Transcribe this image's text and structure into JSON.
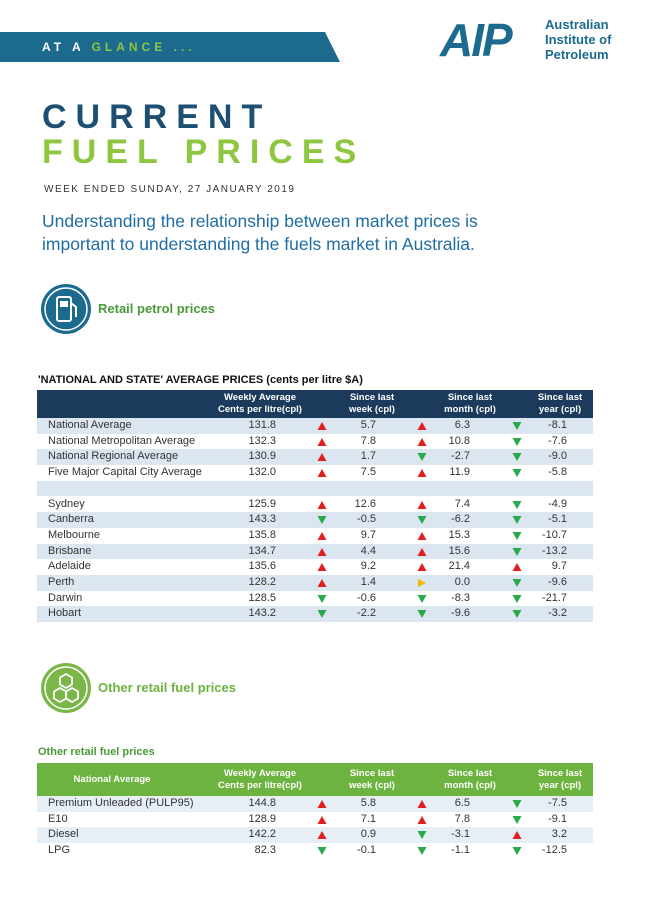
{
  "banner": {
    "prefix": "AT A",
    "highlight": "GLANCE ..."
  },
  "logo": {
    "mark": "AIP",
    "name_lines": [
      "Australian",
      "Institute of",
      "Petroleum"
    ]
  },
  "title": {
    "line1": "CURRENT",
    "line2": "FUEL PRICES"
  },
  "date": "WEEK ENDED SUNDAY, 27 JANUARY 2019",
  "intro": "Understanding the relationship between market prices is important to understanding the fuels market in Australia.",
  "sections": [
    {
      "label": "Retail petrol prices"
    },
    {
      "label": "Other retail fuel prices"
    }
  ],
  "tables": [
    {
      "title": "'NATIONAL AND STATE' AVERAGE PRICES (cents per litre $A)",
      "headers": [
        [
          "Weekly Average",
          "Cents per litre(cpl)"
        ],
        [
          "Since last",
          "week (cpl)"
        ],
        [
          "Since last",
          "month (cpl)"
        ],
        [
          "Since last",
          "year (cpl)"
        ]
      ],
      "groups": [
        [
          [
            "National Average",
            "131.8",
            "5.7",
            "6.3",
            "-8.1"
          ],
          [
            "National Metropolitan Average",
            "132.3",
            "7.8",
            "10.8",
            "-7.6"
          ],
          [
            "National Regional Average",
            "130.9",
            "1.7",
            "-2.7",
            "-9.0"
          ],
          [
            "Five Major Capital City Average",
            "132.0",
            "7.5",
            "11.9",
            "-5.8"
          ]
        ],
        [
          [
            "Sydney",
            "125.9",
            "12.6",
            "7.4",
            "-4.9"
          ],
          [
            "Canberra",
            "143.3",
            "-0.5",
            "-6.2",
            "-5.1"
          ],
          [
            "Melbourne",
            "135.8",
            "9.7",
            "15.3",
            "-10.7"
          ],
          [
            "Brisbane",
            "134.7",
            "4.4",
            "15.6",
            "-13.2"
          ],
          [
            "Adelaide",
            "135.6",
            "9.2",
            "21.4",
            "9.7"
          ],
          [
            "Perth",
            "128.2",
            "1.4",
            "0.0",
            "-9.6"
          ],
          [
            "Darwin",
            "128.5",
            "-0.6",
            "-8.3",
            "-21.7"
          ],
          [
            "Hobart",
            "143.2",
            "-2.2",
            "-9.6",
            "-3.2"
          ]
        ]
      ]
    },
    {
      "title": "Other retail fuel prices",
      "corner": "National Average",
      "headers": [
        [
          "Weekly Average",
          "Cents per litre(cpl)"
        ],
        [
          "Since last",
          "week (cpl)"
        ],
        [
          "Since last",
          "month (cpl)"
        ],
        [
          "Since last",
          "year (cpl)"
        ]
      ],
      "groups": [
        [
          [
            "Premium Unleaded (PULP95)",
            "144.8",
            "5.8",
            "6.5",
            "-7.5"
          ],
          [
            "E10",
            "128.9",
            "7.1",
            "7.8",
            "-9.1"
          ],
          [
            "Diesel",
            "142.2",
            "0.9",
            "-3.1",
            "3.2"
          ],
          [
            "LPG",
            "82.3",
            "-0.1",
            "-1.1",
            "-12.5"
          ]
        ]
      ]
    }
  ]
}
